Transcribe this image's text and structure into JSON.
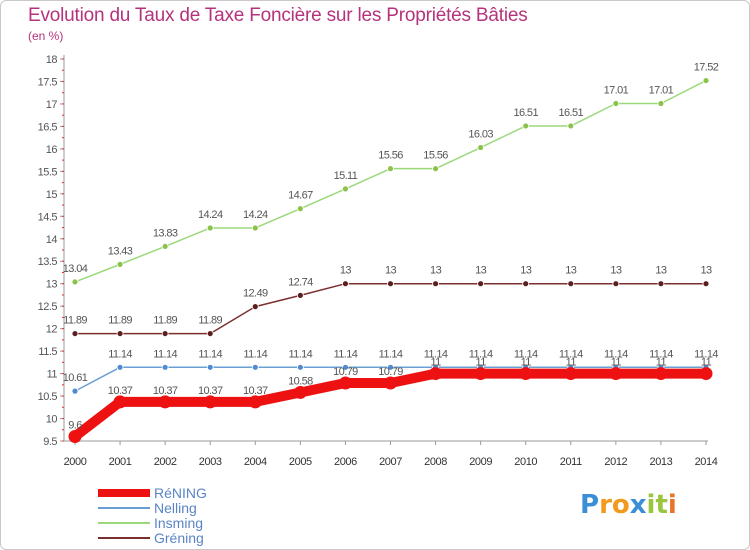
{
  "title": "Evolution du Taux de Taxe Foncière sur les Propriétés Bâties",
  "subtitle": "(en %)",
  "logo": "Proxiti",
  "chart_data": {
    "type": "line",
    "title": "Evolution du Taux de Taxe Foncière sur les Propriétés Bâties",
    "ylabel": "(en %)",
    "xlabel": "",
    "x": [
      2000,
      2001,
      2002,
      2003,
      2004,
      2005,
      2006,
      2007,
      2008,
      2009,
      2010,
      2011,
      2012,
      2013,
      2014
    ],
    "ylim": [
      9.5,
      18
    ],
    "yticks": [
      9.5,
      10,
      10.5,
      11,
      11.5,
      12,
      12.5,
      13,
      13.5,
      14,
      14.5,
      15,
      15.5,
      16,
      16.5,
      17,
      17.5,
      18
    ],
    "grid": false,
    "legend": "bottom-left",
    "series": [
      {
        "name": "Insming",
        "color": "#9bd97a",
        "marker": "#8bc34a",
        "values": [
          13.04,
          13.43,
          13.83,
          14.24,
          14.24,
          14.67,
          15.11,
          15.56,
          15.56,
          16.03,
          16.51,
          16.51,
          17.01,
          17.01,
          17.52
        ],
        "labels": [
          "13.04",
          "13.43",
          "13.83",
          "14.24",
          "14.24",
          "14.67",
          "15.11",
          "15.56",
          "15.56",
          "16.03",
          "16.51",
          "16.51",
          "17.01",
          "17.01",
          "17.52"
        ]
      },
      {
        "name": "Gréning",
        "color": "#7b2e2e",
        "marker": "#5a1f1f",
        "values": [
          11.89,
          11.89,
          11.89,
          11.89,
          12.49,
          12.74,
          13,
          13,
          13,
          13,
          13,
          13,
          13,
          13,
          13
        ],
        "labels": [
          "11.89",
          "11.89",
          "11.89",
          "11.89",
          "12.49",
          "12.74",
          "13",
          "13",
          "13",
          "13",
          "13",
          "13",
          "13",
          "13",
          "13"
        ]
      },
      {
        "name": "Nelling",
        "color": "#6a9fd4",
        "marker": "#4f8bd0",
        "values": [
          10.61,
          11.14,
          11.14,
          11.14,
          11.14,
          11.14,
          11.14,
          11.14,
          11.14,
          11.14,
          11.14,
          11.14,
          11.14,
          11.14,
          11.14
        ],
        "labels": [
          "10.61",
          "11.14",
          "11.14",
          "11.14",
          "11.14",
          "11.14",
          "11.14",
          "11.14",
          "11.14",
          "11.14",
          "11.14",
          "11.14",
          "11.14",
          "11.14",
          "11.14"
        ]
      },
      {
        "name": "RéNING",
        "color": "#ee1111",
        "marker": "#ee1111",
        "values": [
          9.6,
          10.37,
          10.37,
          10.37,
          10.37,
          10.58,
          10.79,
          10.79,
          11,
          11,
          11,
          11,
          11,
          11,
          11
        ],
        "labels": [
          "9.6",
          "10.37",
          "10.37",
          "10.37",
          "10.37",
          "10.58",
          "10.79",
          "10.79",
          "11",
          "11",
          "11",
          "11",
          "11",
          "11",
          "11"
        ]
      }
    ],
    "legend_order": [
      "RéNING",
      "Nelling",
      "Insming",
      "Gréning"
    ]
  }
}
